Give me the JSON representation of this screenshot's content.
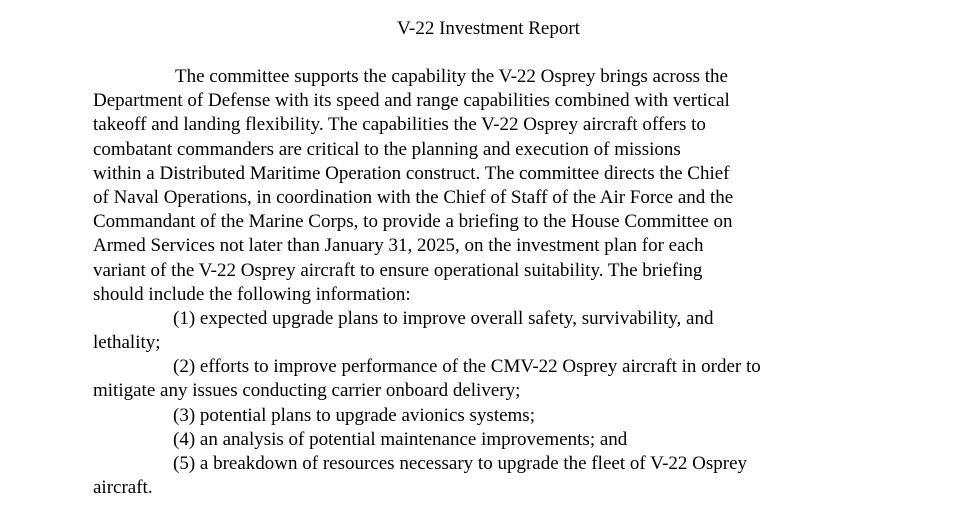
{
  "document": {
    "title": "V-22 Investment Report",
    "lines": [
      {
        "text": "The committee supports the capability the V-22 Osprey brings across the",
        "indent": 1
      },
      {
        "text": "Department of Defense with its speed and range capabilities combined with vertical",
        "indent": 0
      },
      {
        "text": "takeoff and landing flexibility. The capabilities the V-22 Osprey aircraft offers to",
        "indent": 0
      },
      {
        "text": "combatant commanders are critical to the planning and execution of missions",
        "indent": 0
      },
      {
        "text": "within a Distributed Maritime Operation construct. The committee directs the Chief",
        "indent": 0
      },
      {
        "text": "of Naval Operations, in coordination with the Chief of Staff of the Air Force and the",
        "indent": 0
      },
      {
        "text": "Commandant of the Marine Corps, to provide a briefing to the House Committee on",
        "indent": 0
      },
      {
        "text": "Armed Services not later than January 31, 2025, on the investment plan for each",
        "indent": 0
      },
      {
        "text": "variant of the V-22 Osprey aircraft to ensure operational suitability. The briefing",
        "indent": 0
      },
      {
        "text": "should include the following information:",
        "indent": 0
      },
      {
        "text": "(1) expected upgrade plans to improve overall safety, survivability, and",
        "indent": 2
      },
      {
        "text": "lethality;",
        "indent": 0
      },
      {
        "text": "(2) efforts to improve performance of the CMV-22 Osprey aircraft in order to",
        "indent": 2
      },
      {
        "text": "mitigate any issues conducting carrier onboard delivery;",
        "indent": 0
      },
      {
        "text": "(3) potential plans to upgrade avionics systems;",
        "indent": 2
      },
      {
        "text": "(4) an analysis of potential maintenance improvements; and",
        "indent": 2
      },
      {
        "text": "(5) a breakdown of resources necessary to upgrade the fleet of V-22 Osprey",
        "indent": 2
      },
      {
        "text": "aircraft.",
        "indent": 0
      }
    ]
  }
}
